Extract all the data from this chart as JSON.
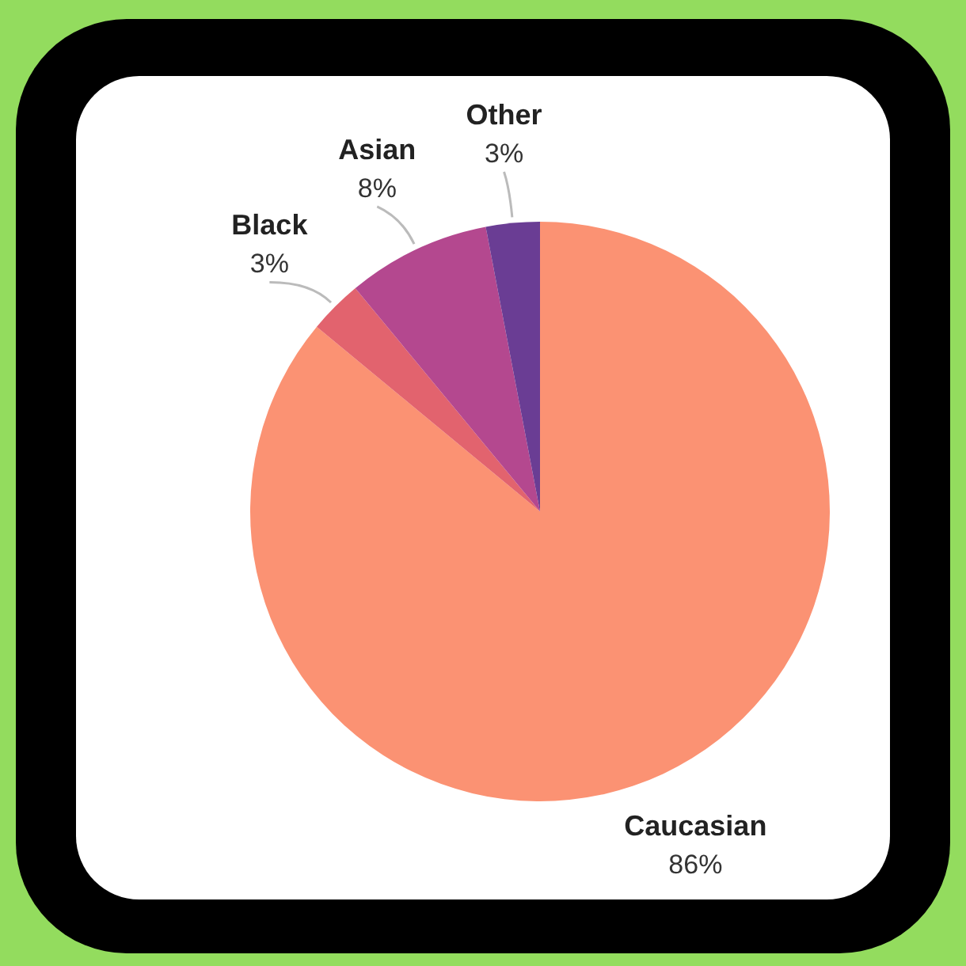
{
  "chart_data": {
    "type": "pie",
    "categories": [
      "Caucasian",
      "Black",
      "Asian",
      "Other"
    ],
    "values": [
      86,
      3,
      8,
      3
    ],
    "colors": [
      "#fb9273",
      "#e2636e",
      "#b4488f",
      "#6a3d94"
    ],
    "value_labels": [
      "86%",
      "3%",
      "8%",
      "3%"
    ]
  }
}
